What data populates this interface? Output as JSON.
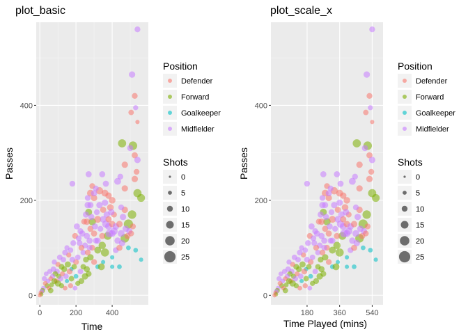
{
  "chart_data": [
    {
      "type": "scatter",
      "title": "plot_basic",
      "xlabel": "Time",
      "ylabel": "Passes",
      "xlim": [
        -20,
        600
      ],
      "ylim": [
        -20,
        575
      ],
      "xticks": [
        0,
        200,
        400
      ],
      "xtick_labels": [
        "0",
        "200",
        "400"
      ],
      "yticks": [
        0,
        200,
        400
      ],
      "ytick_labels": [
        "0",
        "200",
        "400"
      ],
      "x_minor": [
        100,
        300,
        500
      ],
      "y_minor": [
        100,
        300,
        500
      ],
      "grid": true
    },
    {
      "type": "scatter",
      "title": "plot_scale_x",
      "xlabel": "Time Played (mins)",
      "ylabel": "Passes",
      "xlim": [
        -20,
        600
      ],
      "ylim": [
        -20,
        575
      ],
      "xticks": [
        180,
        360,
        540
      ],
      "xtick_labels": [
        "180",
        "360",
        "540"
      ],
      "yticks": [
        0,
        200,
        400
      ],
      "ytick_labels": [
        "0",
        "200",
        "400"
      ],
      "x_minor": [],
      "y_minor": [
        100,
        300,
        500
      ],
      "grid": true
    }
  ],
  "shared_data": {
    "points": [
      [
        540,
        560,
        6,
        "Midfielder"
      ],
      [
        510,
        465,
        8,
        "Midfielder"
      ],
      [
        525,
        420,
        6,
        "Defender"
      ],
      [
        530,
        395,
        4,
        "Midfielder"
      ],
      [
        505,
        385,
        5,
        "Defender"
      ],
      [
        540,
        365,
        2,
        "Defender"
      ],
      [
        515,
        315,
        18,
        "Forward"
      ],
      [
        500,
        310,
        7,
        "Midfielder"
      ],
      [
        525,
        295,
        7,
        "Defender"
      ],
      [
        455,
        320,
        16,
        "Forward"
      ],
      [
        470,
        275,
        8,
        "Defender"
      ],
      [
        540,
        285,
        8,
        "Midfielder"
      ],
      [
        535,
        260,
        6,
        "Defender"
      ],
      [
        525,
        245,
        8,
        "Defender"
      ],
      [
        560,
        205,
        14,
        "Forward"
      ],
      [
        540,
        215,
        16,
        "Forward"
      ],
      [
        470,
        225,
        8,
        "Defender"
      ],
      [
        430,
        240,
        10,
        "Midfielder"
      ],
      [
        445,
        250,
        6,
        "Midfielder"
      ],
      [
        510,
        170,
        18,
        "Forward"
      ],
      [
        490,
        150,
        22,
        "Forward"
      ],
      [
        470,
        120,
        18,
        "Forward"
      ],
      [
        560,
        75,
        2,
        "Goalkeeper"
      ],
      [
        530,
        95,
        3,
        "Goalkeeper"
      ],
      [
        490,
        100,
        3,
        "Goalkeeper"
      ],
      [
        440,
        60,
        3,
        "Goalkeeper"
      ],
      [
        400,
        80,
        2,
        "Goalkeeper"
      ],
      [
        350,
        70,
        2,
        "Goalkeeper"
      ],
      [
        320,
        60,
        3,
        "Goalkeeper"
      ],
      [
        200,
        40,
        3,
        "Goalkeeper"
      ],
      [
        175,
        55,
        2,
        "Goalkeeper"
      ],
      [
        150,
        30,
        2,
        "Goalkeeper"
      ],
      [
        400,
        60,
        2,
        "Goalkeeper"
      ],
      [
        330,
        220,
        12,
        "Defender"
      ],
      [
        360,
        215,
        10,
        "Defender"
      ],
      [
        380,
        210,
        8,
        "Defender"
      ],
      [
        400,
        200,
        9,
        "Defender"
      ],
      [
        365,
        235,
        7,
        "Midfielder"
      ],
      [
        345,
        255,
        7,
        "Midfielder"
      ],
      [
        390,
        185,
        9,
        "Defender"
      ],
      [
        280,
        215,
        10,
        "Defender"
      ],
      [
        300,
        205,
        8,
        "Defender"
      ],
      [
        265,
        190,
        8,
        "Midfielder"
      ],
      [
        270,
        175,
        10,
        "Forward"
      ],
      [
        290,
        155,
        12,
        "Forward"
      ],
      [
        260,
        155,
        8,
        "Defender"
      ],
      [
        280,
        140,
        7,
        "Defender"
      ],
      [
        300,
        130,
        7,
        "Defender"
      ],
      [
        320,
        160,
        10,
        "Defender"
      ],
      [
        350,
        160,
        9,
        "Midfielder"
      ],
      [
        365,
        150,
        12,
        "Midfielder"
      ],
      [
        380,
        145,
        10,
        "Midfielder"
      ],
      [
        400,
        150,
        8,
        "Defender"
      ],
      [
        410,
        135,
        12,
        "Midfielder"
      ],
      [
        420,
        145,
        9,
        "Midfielder"
      ],
      [
        375,
        125,
        14,
        "Forward"
      ],
      [
        345,
        105,
        12,
        "Forward"
      ],
      [
        320,
        95,
        10,
        "Forward"
      ],
      [
        360,
        90,
        16,
        "Forward"
      ],
      [
        340,
        60,
        10,
        "Forward"
      ],
      [
        400,
        130,
        10,
        "Midfielder"
      ],
      [
        430,
        115,
        8,
        "Midfielder"
      ],
      [
        450,
        130,
        10,
        "Midfielder"
      ],
      [
        440,
        150,
        8,
        "Defender"
      ],
      [
        410,
        170,
        6,
        "Defender"
      ],
      [
        385,
        130,
        14,
        "Midfielder"
      ],
      [
        470,
        180,
        8,
        "Defender"
      ],
      [
        450,
        185,
        6,
        "Midfielder"
      ],
      [
        460,
        165,
        8,
        "Midfielder"
      ],
      [
        290,
        100,
        6,
        "Defender"
      ],
      [
        310,
        115,
        6,
        "Midfielder"
      ],
      [
        275,
        115,
        7,
        "Midfielder"
      ],
      [
        260,
        125,
        7,
        "Midfielder"
      ],
      [
        250,
        105,
        6,
        "Midfielder"
      ],
      [
        240,
        90,
        5,
        "Midfielder"
      ],
      [
        230,
        100,
        6,
        "Defender"
      ],
      [
        220,
        110,
        6,
        "Midfielder"
      ],
      [
        225,
        135,
        6,
        "Midfielder"
      ],
      [
        255,
        75,
        6,
        "Forward"
      ],
      [
        240,
        60,
        5,
        "Forward"
      ],
      [
        260,
        55,
        7,
        "Forward"
      ],
      [
        280,
        80,
        8,
        "Forward"
      ],
      [
        300,
        70,
        6,
        "Defender"
      ],
      [
        200,
        70,
        6,
        "Defender"
      ],
      [
        210,
        80,
        5,
        "Midfielder"
      ],
      [
        190,
        60,
        5,
        "Forward"
      ],
      [
        180,
        75,
        6,
        "Midfielder"
      ],
      [
        170,
        95,
        5,
        "Midfielder"
      ],
      [
        160,
        85,
        4,
        "Defender"
      ],
      [
        150,
        100,
        4,
        "Midfielder"
      ],
      [
        140,
        90,
        6,
        "Midfielder"
      ],
      [
        130,
        75,
        5,
        "Midfielder"
      ],
      [
        120,
        60,
        6,
        "Forward"
      ],
      [
        110,
        80,
        5,
        "Midfielder"
      ],
      [
        100,
        65,
        4,
        "Defender"
      ],
      [
        95,
        50,
        5,
        "Midfielder"
      ],
      [
        85,
        45,
        5,
        "Forward"
      ],
      [
        80,
        70,
        4,
        "Midfielder"
      ],
      [
        70,
        40,
        4,
        "Midfielder"
      ],
      [
        60,
        35,
        3,
        "Defender"
      ],
      [
        55,
        50,
        4,
        "Midfielder"
      ],
      [
        45,
        30,
        3,
        "Midfielder"
      ],
      [
        40,
        20,
        4,
        "Forward"
      ],
      [
        35,
        45,
        3,
        "Midfielder"
      ],
      [
        30,
        25,
        3,
        "Defender"
      ],
      [
        20,
        15,
        3,
        "Midfielder"
      ],
      [
        15,
        10,
        4,
        "Forward"
      ],
      [
        10,
        8,
        3,
        "Midfielder"
      ],
      [
        5,
        5,
        2,
        "Defender"
      ],
      [
        8,
        2,
        2,
        "Forward"
      ],
      [
        0,
        0,
        2,
        "Defender"
      ],
      [
        25,
        35,
        4,
        "Midfielder"
      ],
      [
        50,
        15,
        3,
        "Defender"
      ],
      [
        65,
        22,
        3,
        "Forward"
      ],
      [
        75,
        55,
        5,
        "Midfielder"
      ],
      [
        90,
        30,
        4,
        "Defender"
      ],
      [
        105,
        40,
        4,
        "Forward"
      ],
      [
        115,
        35,
        5,
        "Midfielder"
      ],
      [
        125,
        45,
        4,
        "Defender"
      ],
      [
        135,
        55,
        6,
        "Forward"
      ],
      [
        145,
        40,
        5,
        "Midfielder"
      ],
      [
        155,
        65,
        7,
        "Forward"
      ],
      [
        165,
        50,
        6,
        "Defender"
      ],
      [
        175,
        35,
        5,
        "Forward"
      ],
      [
        185,
        110,
        6,
        "Midfielder"
      ],
      [
        195,
        125,
        6,
        "Defender"
      ],
      [
        205,
        145,
        7,
        "Midfielder"
      ],
      [
        215,
        120,
        6,
        "Midfielder"
      ],
      [
        235,
        130,
        7,
        "Midfielder"
      ],
      [
        245,
        155,
        6,
        "Defender"
      ],
      [
        255,
        170,
        7,
        "Midfielder"
      ],
      [
        265,
        205,
        6,
        "Midfielder"
      ],
      [
        280,
        190,
        7,
        "Midfielder"
      ],
      [
        290,
        230,
        6,
        "Defender"
      ],
      [
        300,
        215,
        7,
        "Midfielder"
      ],
      [
        310,
        225,
        6,
        "Midfielder"
      ],
      [
        180,
        235,
        6,
        "Midfielder"
      ],
      [
        270,
        255,
        7,
        "Midfielder"
      ],
      [
        330,
        190,
        8,
        "Midfielder"
      ],
      [
        350,
        180,
        7,
        "Defender"
      ],
      [
        360,
        195,
        8,
        "Midfielder"
      ],
      [
        370,
        170,
        8,
        "Midfielder"
      ],
      [
        380,
        160,
        7,
        "Defender"
      ],
      [
        395,
        175,
        8,
        "Midfielder"
      ],
      [
        210,
        25,
        4,
        "Forward"
      ],
      [
        230,
        30,
        6,
        "Forward"
      ],
      [
        250,
        40,
        8,
        "Forward"
      ],
      [
        270,
        45,
        6,
        "Forward"
      ],
      [
        120,
        20,
        4,
        "Forward"
      ],
      [
        100,
        25,
        8,
        "Forward"
      ],
      [
        80,
        30,
        6,
        "Forward"
      ],
      [
        60,
        10,
        5,
        "Forward"
      ],
      [
        140,
        15,
        3,
        "Defender"
      ],
      [
        170,
        20,
        4,
        "Defender"
      ],
      [
        195,
        15,
        3,
        "Midfielder"
      ],
      [
        225,
        50,
        5,
        "Midfielder"
      ],
      [
        320,
        115,
        7,
        "Midfielder"
      ],
      [
        335,
        140,
        6,
        "Midfielder"
      ],
      [
        345,
        125,
        7,
        "Defender"
      ],
      [
        305,
        145,
        7,
        "Midfielder"
      ],
      [
        315,
        175,
        6,
        "Midfielder"
      ],
      [
        285,
        165,
        7,
        "Midfielder"
      ],
      [
        275,
        100,
        6,
        "Midfielder"
      ],
      [
        265,
        90,
        6,
        "Defender"
      ],
      [
        420,
        95,
        6,
        "Midfielder"
      ],
      [
        440,
        100,
        7,
        "Defender"
      ],
      [
        455,
        110,
        8,
        "Midfielder"
      ],
      [
        475,
        140,
        8,
        "Midfielder"
      ],
      [
        485,
        125,
        7,
        "Defender"
      ],
      [
        495,
        135,
        7,
        "Midfielder"
      ],
      [
        505,
        130,
        6,
        "Defender"
      ],
      [
        515,
        145,
        6,
        "Defender"
      ]
    ]
  },
  "legend": {
    "position_title": "Position",
    "position_items": [
      {
        "label": "Defender",
        "color": "#F8766D"
      },
      {
        "label": "Forward",
        "color": "#7CAE00"
      },
      {
        "label": "Goalkeeper",
        "color": "#00BFC4"
      },
      {
        "label": "Midfielder",
        "color": "#C77CFF"
      }
    ],
    "shots_title": "Shots",
    "shots_items": [
      {
        "label": "0",
        "value": 0
      },
      {
        "label": "5",
        "value": 5
      },
      {
        "label": "10",
        "value": 10
      },
      {
        "label": "15",
        "value": 15
      },
      {
        "label": "20",
        "value": 20
      },
      {
        "label": "25",
        "value": 25
      }
    ]
  }
}
